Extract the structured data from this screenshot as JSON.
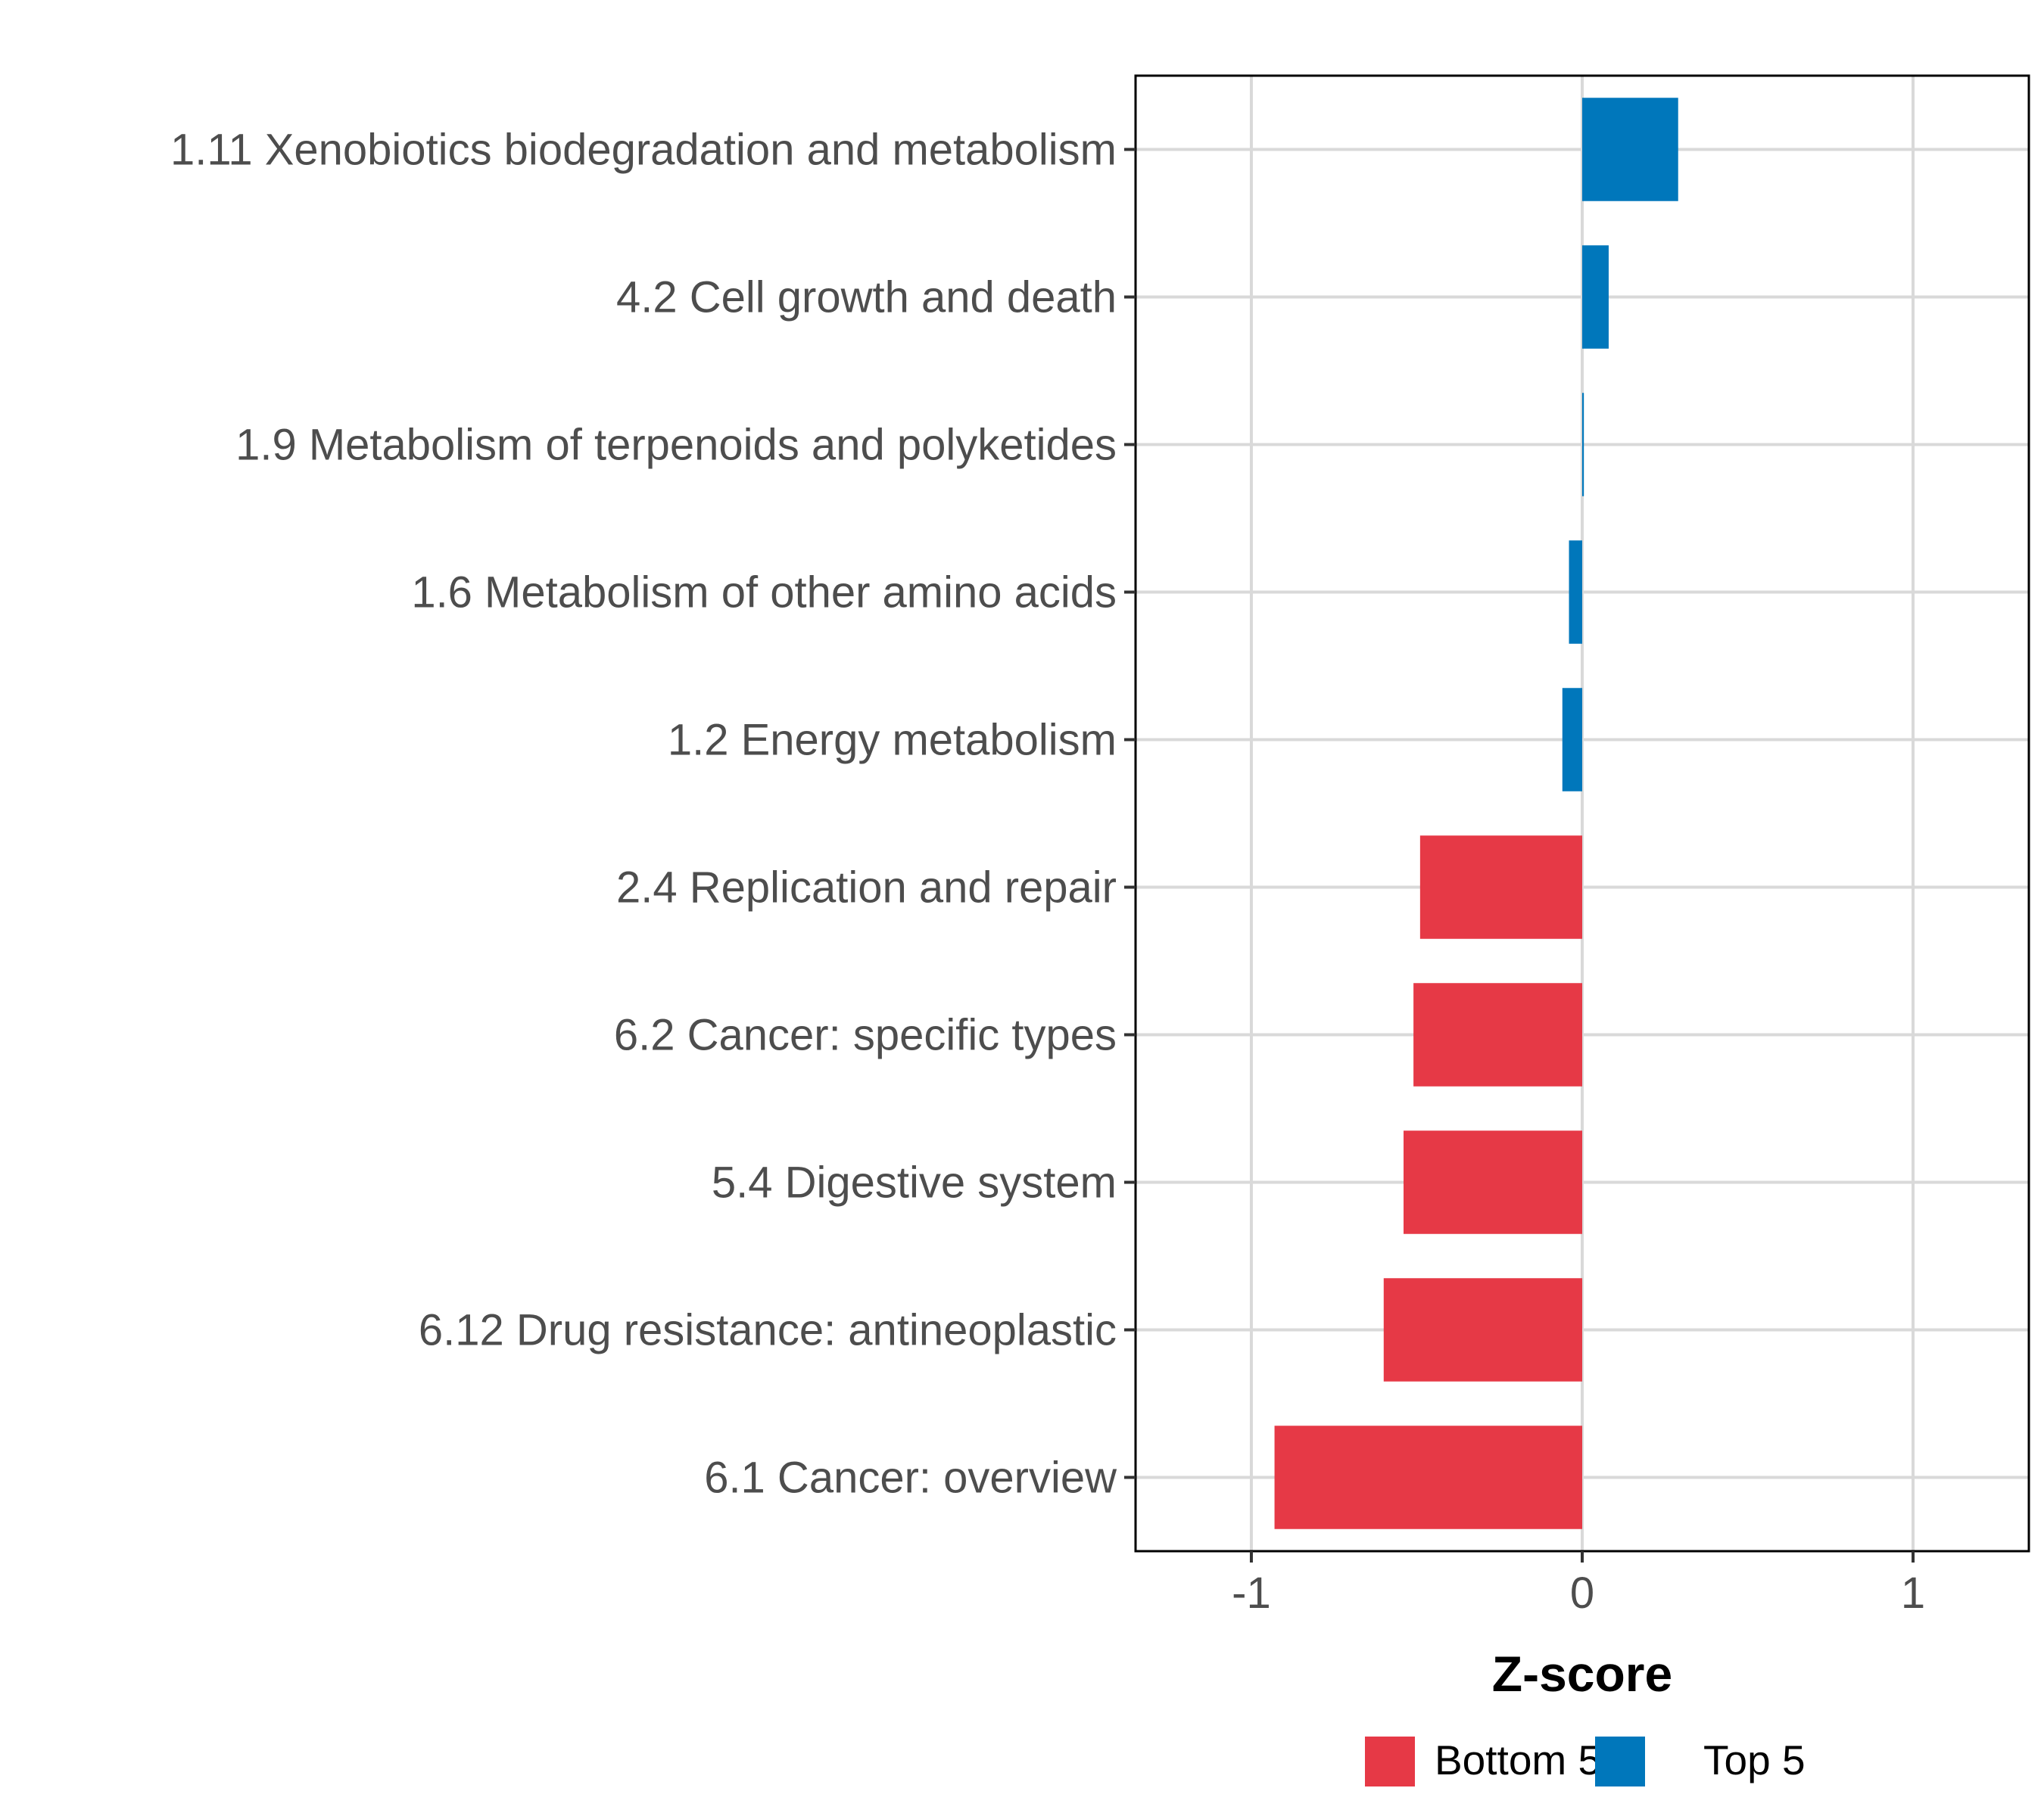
{
  "chart_data": {
    "type": "bar",
    "orientation": "horizontal",
    "title": "",
    "xlabel": "Z-score",
    "ylabel": "",
    "xlim": [
      -1.35,
      1.35
    ],
    "x_ticks": [
      -1,
      0,
      1
    ],
    "x_tick_labels": [
      "-1",
      "0",
      "1"
    ],
    "grid": true,
    "legend_position": "bottom",
    "colors": {
      "Bottom 5": "#e63946",
      "Top 5": "#0077bb"
    },
    "categories": [
      "1.11 Xenobiotics biodegradation and metabolism",
      "4.2 Cell growth and death",
      "1.9 Metabolism of terpenoids and polyketides",
      "1.6 Metabolism of other amino acids",
      "1.2 Energy metabolism",
      "2.4 Replication and repair",
      "6.2 Cancer: specific types",
      "5.4 Digestive system",
      "6.12 Drug resistance: antineoplastic",
      "6.1 Cancer: overview"
    ],
    "values": [
      0.29,
      0.08,
      0.005,
      -0.04,
      -0.06,
      -0.49,
      -0.51,
      -0.54,
      -0.6,
      -0.93
    ],
    "groups": [
      "Top 5",
      "Top 5",
      "Top 5",
      "Top 5",
      "Top 5",
      "Bottom 5",
      "Bottom 5",
      "Bottom 5",
      "Bottom 5",
      "Bottom 5"
    ],
    "legend": [
      {
        "label": "Bottom 5",
        "color": "#e63946"
      },
      {
        "label": "Top 5",
        "color": "#0077bb"
      }
    ]
  }
}
